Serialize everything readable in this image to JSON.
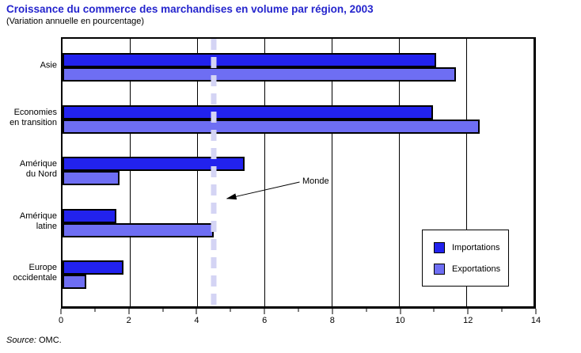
{
  "header": {
    "title": "Croissance du commerce des marchandises en volume par région, 2003",
    "subtitle": "(Variation annuelle en pourcentage)"
  },
  "chart_data": {
    "type": "bar",
    "orientation": "horizontal",
    "title": "Croissance du commerce des marchandises en volume par région, 2003",
    "subtitle": "(Variation annuelle en pourcentage)",
    "categories": [
      "Asie",
      "Economies\nen transition",
      "Amérique\ndu Nord",
      "Amérique\nlatine",
      "Europe\noccidentale"
    ],
    "series": [
      {
        "name": "Importations",
        "color": "#2222ee",
        "values": [
          11.1,
          11.0,
          5.4,
          1.6,
          1.8
        ]
      },
      {
        "name": "Exportations",
        "color": "#6e6ef3",
        "values": [
          11.7,
          12.4,
          1.7,
          4.5,
          0.7
        ]
      }
    ],
    "xlim": [
      0,
      14
    ],
    "x_major_ticks": [
      0,
      2,
      4,
      6,
      8,
      10,
      12,
      14
    ],
    "x_minor_step": 1,
    "grid": "vertical-at-major-ticks",
    "legend_position": "bottom-right",
    "world_line": {
      "label": "Monde",
      "value": 4.5,
      "color": "#d4d4f4"
    }
  },
  "colors": {
    "title_text": "#2525cd",
    "import_bar": "#2222ee",
    "export_bar": "#6e6ef3",
    "world_line": "#d4d4f4"
  },
  "footer": {
    "source_prefix": "Source:",
    "source_value": "OMC."
  }
}
